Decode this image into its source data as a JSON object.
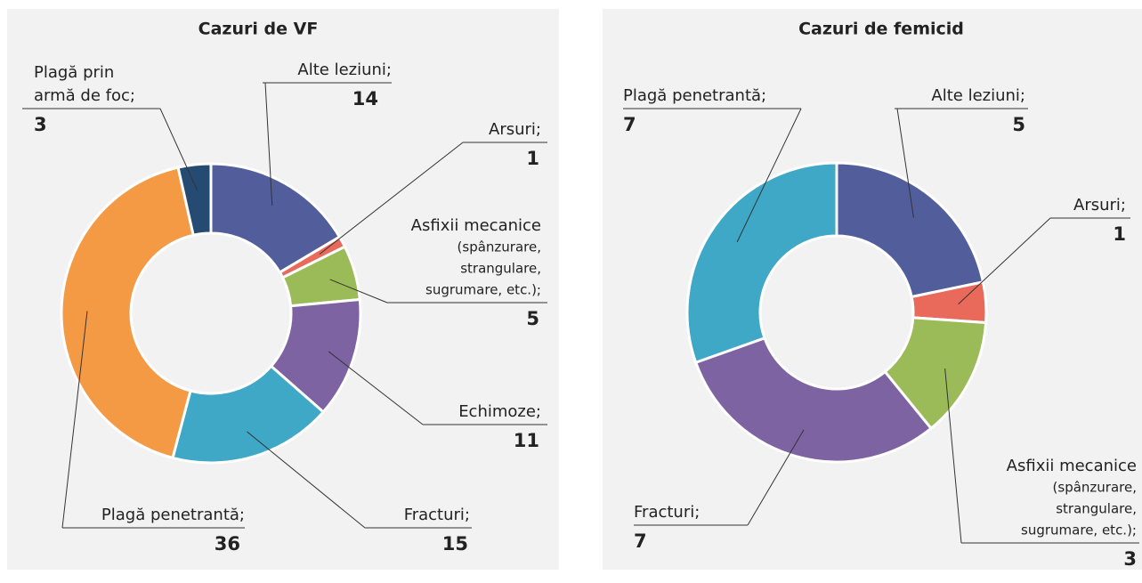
{
  "chart_data": [
    {
      "type": "donut",
      "title": "Cazuri de VF",
      "categories": [
        [
          "Alte leziuni;"
        ],
        [
          "Arsuri;"
        ],
        [
          "Asfixii mecanice",
          "(spânzurare,",
          "strangulare,",
          "sugrumare, etc.);"
        ],
        [
          "Echimoze;"
        ],
        [
          "Fracturi;"
        ],
        [
          "Plagă penetrantă;"
        ],
        [
          "Plagă prin",
          "armă de foc;"
        ]
      ],
      "values": [
        14,
        1,
        5,
        11,
        15,
        36,
        3
      ],
      "colors": [
        "#525e9c",
        "#e96a5a",
        "#9bbb59",
        "#7e63a3",
        "#3ea8c6",
        "#f49a45",
        "#264b73"
      ]
    },
    {
      "type": "donut",
      "title": "Cazuri de femicid",
      "categories": [
        [
          "Alte leziuni;"
        ],
        [
          "Arsuri;"
        ],
        [
          "Asfixii mecanice",
          "(spânzurare,",
          "strangulare,",
          "sugrumare, etc.);"
        ],
        [
          "Fracturi;"
        ],
        [
          "Plagă penetrantă;"
        ]
      ],
      "values": [
        5,
        1,
        3,
        7,
        7
      ],
      "colors": [
        "#525e9c",
        "#e96a5a",
        "#9bbb59",
        "#7e63a3",
        "#3ea8c6"
      ]
    }
  ]
}
